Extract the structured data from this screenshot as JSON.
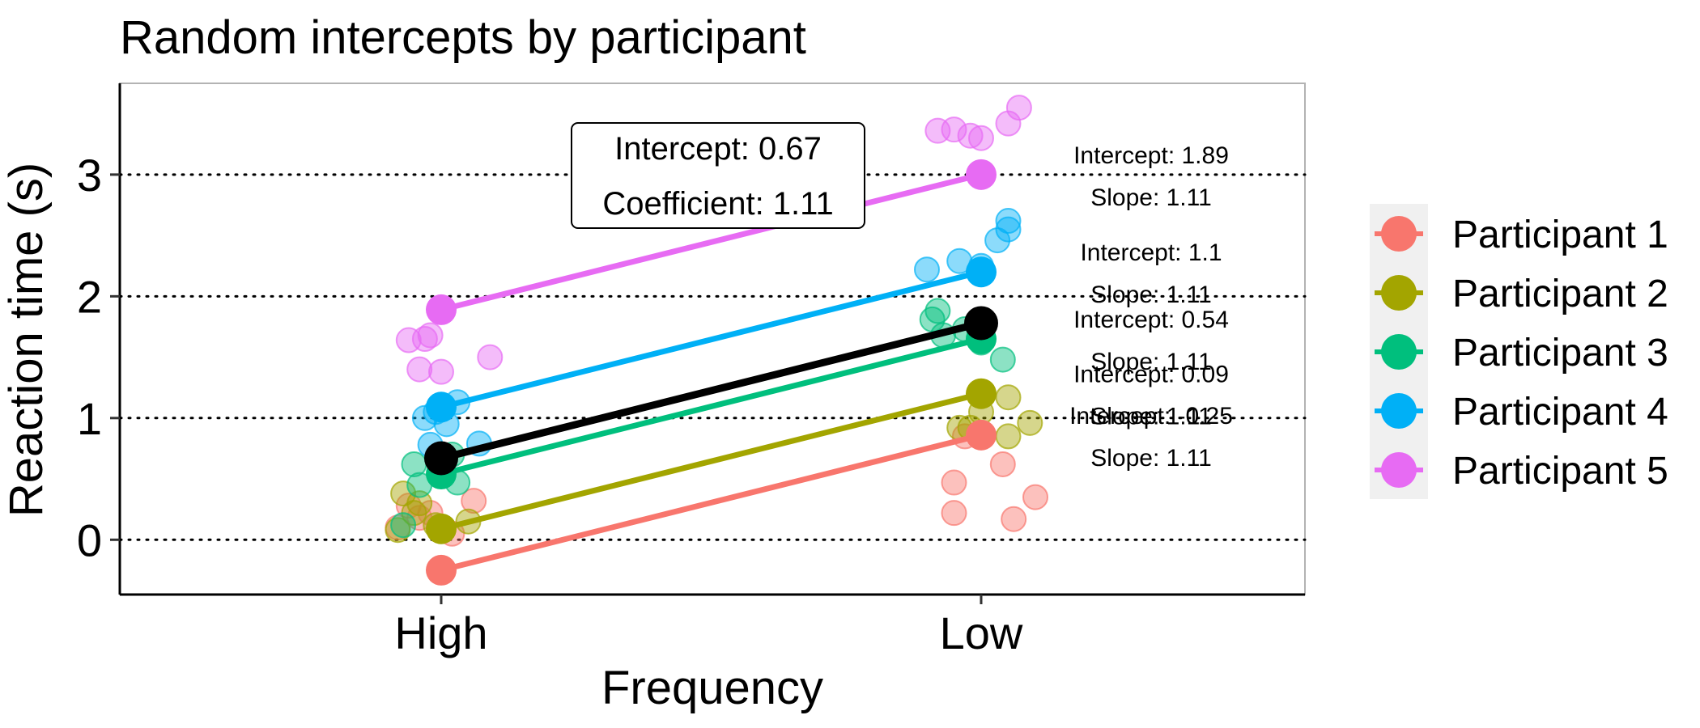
{
  "chart_data": {
    "type": "line",
    "title": "Random intercepts by participant",
    "xlabel": "Frequency",
    "ylabel": "Reaction time (s)",
    "categories": [
      "High",
      "Low"
    ],
    "ylim": [
      -0.45,
      3.75
    ],
    "yticks": [
      0,
      1,
      2,
      3
    ],
    "grid": "horizontal-dotted",
    "legend_position": "right",
    "fixed_effect": {
      "values": [
        0.67,
        1.78
      ],
      "color": "#000000",
      "label_lines": [
        "Intercept: 0.67",
        "Coefficient: 1.11"
      ]
    },
    "series": [
      {
        "name": "Participant 1",
        "color": "#F8766D",
        "values": [
          -0.25,
          0.86
        ],
        "label_lines": [
          "Intercept: -0.25",
          "Slope: 1.11"
        ],
        "points": [
          [
            -0.08,
            0.1
          ],
          [
            -0.02,
            0.22
          ],
          [
            0.02,
            0.05
          ],
          [
            0.06,
            0.32
          ],
          [
            -0.04,
            0.18
          ],
          [
            -0.06,
            0.28
          ],
          [
            -0.05,
            0.47
          ],
          [
            -0.05,
            0.22
          ],
          [
            0.04,
            0.62
          ],
          [
            0.06,
            0.17
          ],
          [
            0.1,
            0.35
          ],
          [
            -0.03,
            0.85
          ]
        ]
      },
      {
        "name": "Participant 2",
        "color": "#A3A500",
        "values": [
          0.09,
          1.2
        ],
        "label_lines": [
          "Intercept: 0.09",
          "Slope: 1.11"
        ],
        "points": [
          [
            -0.08,
            0.08
          ],
          [
            -0.07,
            0.38
          ],
          [
            -0.05,
            0.22
          ],
          [
            -0.01,
            0.12
          ],
          [
            0.05,
            0.15
          ],
          [
            -0.04,
            0.3
          ],
          [
            -0.04,
            0.92
          ],
          [
            0.05,
            1.17
          ],
          [
            0.05,
            0.85
          ],
          [
            0.09,
            0.96
          ],
          [
            0.0,
            1.05
          ],
          [
            -0.02,
            0.92
          ]
        ]
      },
      {
        "name": "Participant 3",
        "color": "#00BF7D",
        "values": [
          0.54,
          1.65
        ],
        "label_lines": [
          "Intercept: 0.54",
          "Slope: 1.11"
        ],
        "points": [
          [
            -0.07,
            0.12
          ],
          [
            -0.05,
            0.62
          ],
          [
            -0.04,
            0.45
          ],
          [
            0.03,
            0.47
          ],
          [
            0.02,
            0.7
          ],
          [
            0.0,
            0.55
          ],
          [
            -0.09,
            1.81
          ],
          [
            -0.08,
            1.88
          ],
          [
            -0.07,
            1.68
          ],
          [
            0.04,
            1.48
          ],
          [
            0.0,
            1.62
          ],
          [
            -0.03,
            1.73
          ]
        ]
      },
      {
        "name": "Participant 4",
        "color": "#00B0F6",
        "values": [
          1.09,
          2.2
        ],
        "label_lines": [
          "Intercept: 1.1",
          "Slope: 1.11"
        ],
        "points": [
          [
            -0.03,
            1.0
          ],
          [
            -0.02,
            0.78
          ],
          [
            0.03,
            1.13
          ],
          [
            0.07,
            0.79
          ],
          [
            0.01,
            0.95
          ],
          [
            -0.01,
            1.05
          ],
          [
            -0.1,
            2.22
          ],
          [
            -0.04,
            2.29
          ],
          [
            0.03,
            2.46
          ],
          [
            0.05,
            2.55
          ],
          [
            0.05,
            2.62
          ],
          [
            0.0,
            2.25
          ]
        ]
      },
      {
        "name": "Participant 5",
        "color": "#E76BF3",
        "values": [
          1.89,
          3.0
        ],
        "label_lines": [
          "Intercept: 1.89",
          "Slope: 1.11"
        ],
        "points": [
          [
            -0.06,
            1.64
          ],
          [
            -0.04,
            1.4
          ],
          [
            -0.02,
            1.68
          ],
          [
            0.0,
            1.38
          ],
          [
            0.09,
            1.5
          ],
          [
            -0.03,
            1.65
          ],
          [
            -0.08,
            3.36
          ],
          [
            -0.05,
            3.37
          ],
          [
            -0.02,
            3.32
          ],
          [
            0.05,
            3.42
          ],
          [
            0.07,
            3.55
          ],
          [
            0.0,
            3.3
          ]
        ]
      }
    ]
  }
}
